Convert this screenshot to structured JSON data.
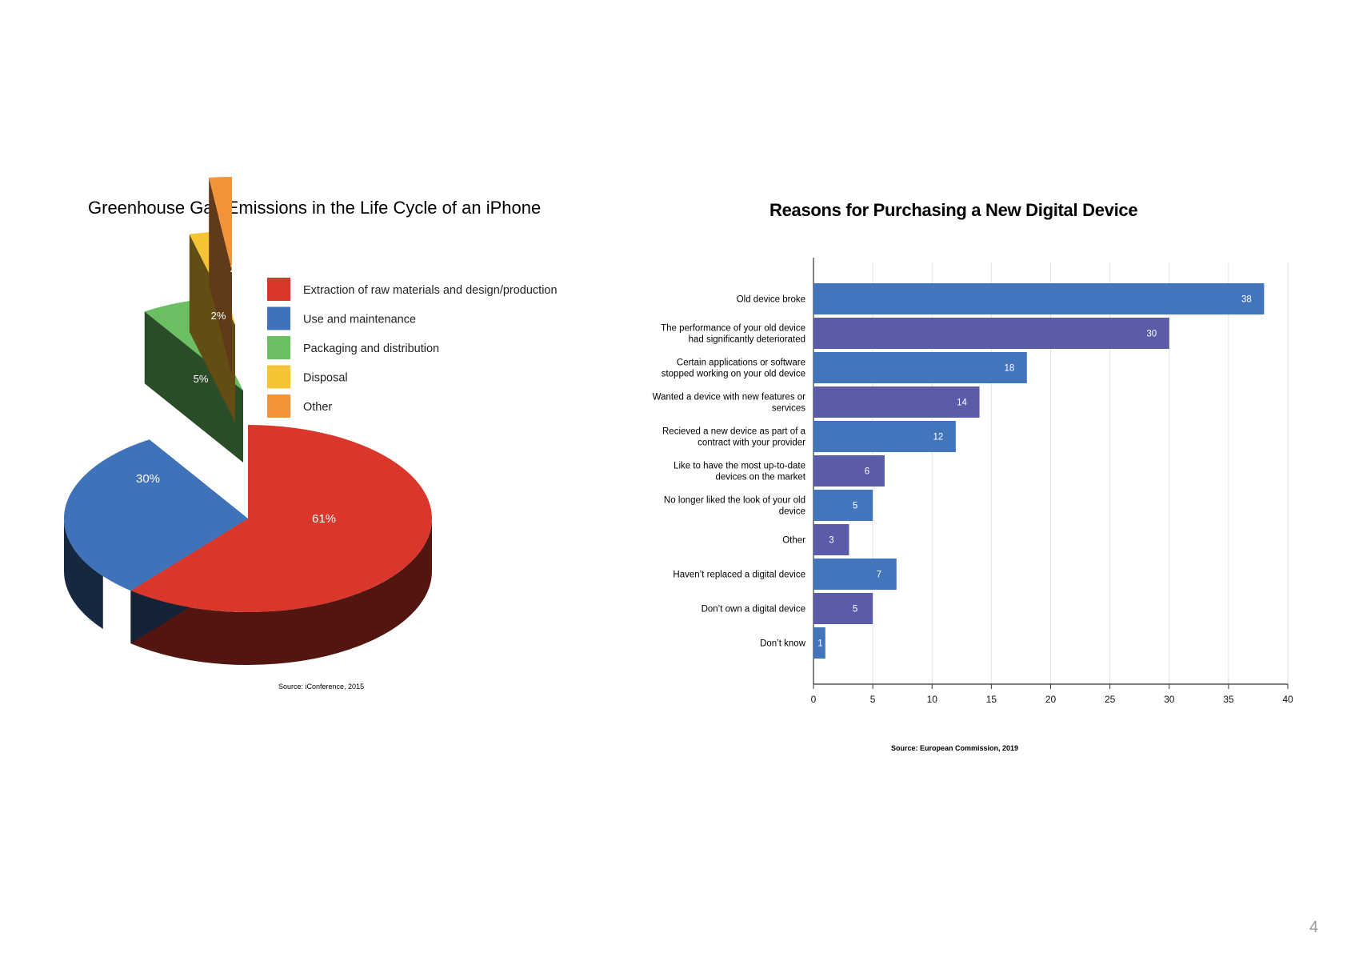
{
  "page": {
    "number": "4"
  },
  "pie_chart": {
    "title": "Greenhouse Gas Emissions in the Life Cycle of an iPhone",
    "source": "Source: iConference, 2015"
  },
  "bar_chart": {
    "title": "Reasons for Purchasing a New Digital Device",
    "source": "Source: European Commission, 2019"
  },
  "chart_data": [
    {
      "type": "pie",
      "title": "Greenhouse Gas Emissions in the Life Cycle of an iPhone",
      "style": "3d-exploded",
      "legend_position": "top-right",
      "categories": [
        "Extraction of raw materials and design/production",
        "Use and maintenance",
        "Packaging and distribution",
        "Disposal",
        "Other"
      ],
      "values": [
        61,
        30,
        5,
        2,
        2
      ],
      "labels": [
        "61%",
        "30%",
        "5%",
        "2%",
        "2%"
      ],
      "colors": [
        "#d9372b",
        "#3f72b8",
        "#6abf63",
        "#f6c335",
        "#f3943a"
      ],
      "source": "Source: iConference, 2015"
    },
    {
      "type": "bar",
      "orientation": "horizontal",
      "title": "Reasons for Purchasing a New Digital Device",
      "categories": [
        [
          "Old device broke"
        ],
        [
          "The performance of your old device",
          "had significantly deteriorated"
        ],
        [
          "Certain applications or software",
          "stopped working on your old device"
        ],
        [
          "Wanted a device with new features or",
          "services"
        ],
        [
          "Recieved a new device as part of a",
          "contract with your provider"
        ],
        [
          "Like to have the most up-to-date",
          "devices on the market"
        ],
        [
          "No longer liked the look of your old",
          "device"
        ],
        [
          "Other"
        ],
        [
          "Haven’t replaced a digital device"
        ],
        [
          "Don’t own a digital device"
        ],
        [
          "Don’t know"
        ]
      ],
      "values": [
        38,
        30,
        18,
        14,
        12,
        6,
        5,
        3,
        7,
        5,
        1
      ],
      "xlim": [
        0,
        40
      ],
      "xticks": [
        0,
        5,
        10,
        15,
        20,
        25,
        30,
        35,
        40
      ],
      "grid": true,
      "colors": [
        "#4275bc",
        "#5b5ca9"
      ],
      "source": "Source: European Commission, 2019"
    }
  ]
}
